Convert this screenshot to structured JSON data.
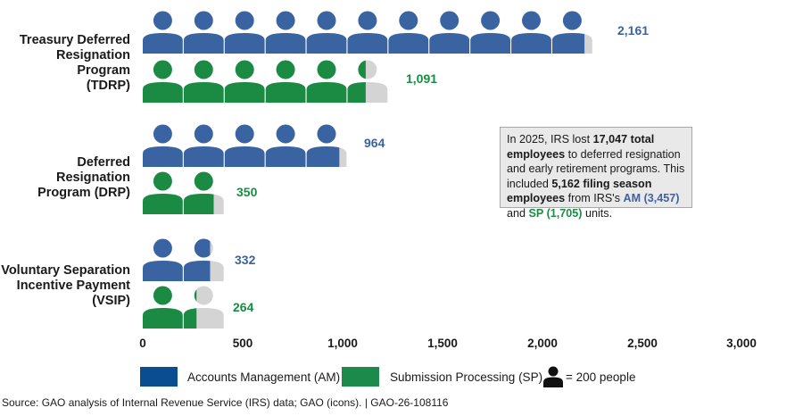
{
  "chart_data": {
    "type": "bar",
    "style": "pictograph",
    "unit_per_icon": 200,
    "categories": [
      "Treasury Deferred\nResignation Program\n(TDRP)",
      "Deferred Resignation\nProgram (DRP)",
      "Voluntary Separation\nIncentive Payment\n(VSIP)"
    ],
    "series": [
      {
        "name": "Accounts Management (AM)",
        "color": "#3a63a2",
        "values": [
          2161,
          964,
          332
        ],
        "labels": [
          "2,161",
          "964",
          "332"
        ]
      },
      {
        "name": "Submission Processing (SP)",
        "color": "#1b8a43",
        "values": [
          1091,
          350,
          264
        ],
        "labels": [
          "1,091",
          "350",
          "264"
        ]
      }
    ],
    "xlim": [
      0,
      3000
    ],
    "xticks": [
      "0",
      "500",
      "1,000",
      "1,500",
      "2,000",
      "2,500",
      "3,000"
    ],
    "xtick_values": [
      0,
      500,
      1000,
      1500,
      2000,
      2500,
      3000
    ],
    "xlabel": "",
    "ylabel": "",
    "grid": false,
    "remainder_color": "#d4d4d4",
    "legend": {
      "placement": "bottom",
      "items": [
        {
          "label": "Accounts Management (AM)",
          "color": "#0b4d91"
        },
        {
          "label": "Submission Processing (SP)",
          "color": "#1b8a4a"
        }
      ],
      "icon_note": "= 200 people"
    }
  },
  "annotation": {
    "t1": "In 2025, IRS lost ",
    "b1": "17,047 total employees",
    "t2": " to deferred resignation and early retirement programs. This included ",
    "b2": "5,162 filing season employees",
    "t3": " from IRS's ",
    "am": "AM (3,457)",
    "t4": " and ",
    "sp": "SP (1,705)",
    "t5": "  units."
  },
  "source": "Source: GAO analysis of Internal Revenue Service (IRS) data; GAO (icons).  |  GAO-26-108116"
}
